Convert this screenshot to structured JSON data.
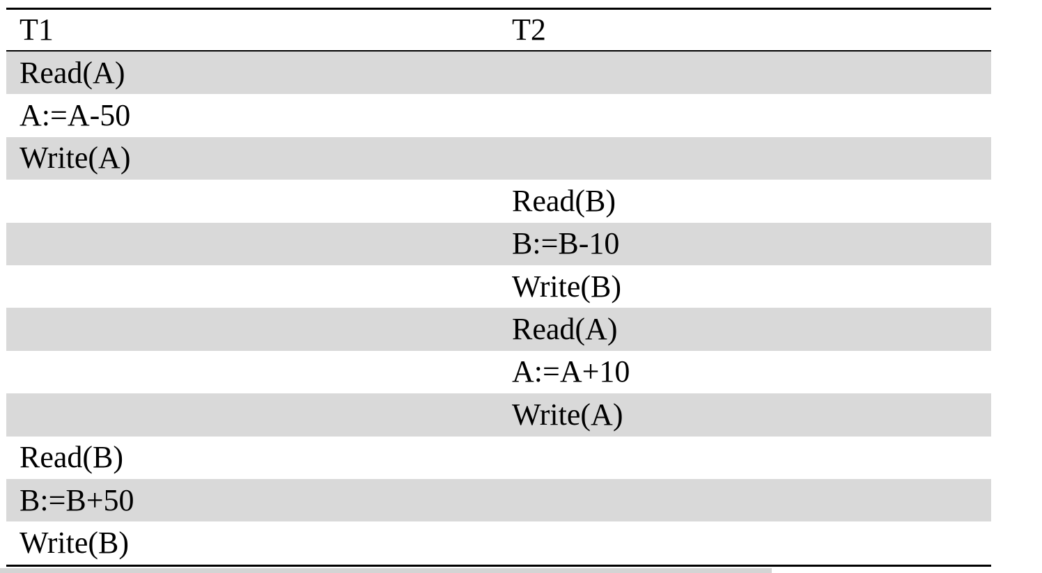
{
  "table": {
    "header": [
      "T1",
      "T2"
    ],
    "rows": [
      [
        "Read(A)",
        null
      ],
      [
        "A:=A-50",
        null
      ],
      [
        "Write(A)",
        null
      ],
      [
        null,
        "Read(B)"
      ],
      [
        null,
        "B:=B-10"
      ],
      [
        null,
        "Write(B)"
      ],
      [
        null,
        "Read(A)"
      ],
      [
        null,
        "A:=A+10"
      ],
      [
        null,
        "Write(A)"
      ],
      [
        "Read(B)",
        null
      ],
      [
        "B:=B+50",
        null
      ],
      [
        "Write(B)",
        null
      ]
    ]
  }
}
